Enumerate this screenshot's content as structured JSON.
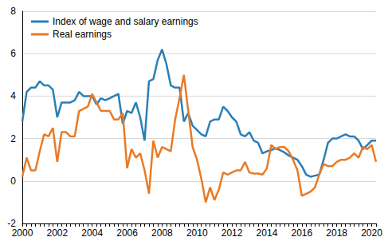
{
  "chart_data": {
    "type": "line",
    "categories": [
      "2000",
      null,
      null,
      null,
      null,
      null,
      null,
      null,
      "2002",
      null,
      null,
      null,
      null,
      null,
      null,
      null,
      "2004",
      null,
      null,
      null,
      null,
      null,
      null,
      null,
      "2006",
      null,
      null,
      null,
      null,
      null,
      null,
      null,
      "2008",
      null,
      null,
      null,
      null,
      null,
      null,
      null,
      "2010",
      null,
      null,
      null,
      null,
      null,
      null,
      null,
      "2012",
      null,
      null,
      null,
      null,
      null,
      null,
      null,
      "2014",
      null,
      null,
      null,
      null,
      null,
      null,
      null,
      "2016",
      null,
      null,
      null,
      null,
      null,
      null,
      null,
      "2018",
      null,
      null,
      null,
      null,
      null,
      null,
      null,
      "2020",
      null
    ],
    "series": [
      {
        "name": "Index of wage and salary earnings",
        "color": "#2a7fb8",
        "values": [
          2.8,
          4.2,
          4.4,
          4.4,
          4.7,
          4.5,
          4.5,
          4.3,
          3.0,
          3.7,
          3.7,
          3.7,
          3.8,
          4.2,
          4.0,
          4.0,
          4.0,
          3.6,
          3.9,
          3.8,
          3.9,
          4.0,
          4.1,
          2.7,
          3.3,
          3.2,
          3.7,
          3.0,
          1.9,
          4.7,
          4.8,
          5.7,
          6.2,
          5.5,
          4.5,
          4.4,
          4.4,
          2.8,
          3.2,
          2.6,
          2.4,
          2.2,
          2.1,
          2.8,
          2.9,
          2.9,
          3.5,
          3.3,
          3.0,
          2.8,
          2.2,
          2.1,
          2.3,
          1.9,
          1.8,
          1.3,
          1.4,
          1.45,
          1.55,
          1.45,
          1.35,
          1.2,
          1.1,
          1.0,
          0.7,
          0.3,
          0.2,
          0.25,
          0.3,
          1.0,
          1.8,
          2.0,
          2.0,
          2.1,
          2.2,
          2.1,
          2.1,
          1.9,
          1.5,
          1.7,
          1.9,
          1.9
        ]
      },
      {
        "name": "Real earnings",
        "color": "#ea7a24",
        "values": [
          0.2,
          1.1,
          0.5,
          0.5,
          1.4,
          2.2,
          2.1,
          2.5,
          0.9,
          2.3,
          2.3,
          2.1,
          2.1,
          3.3,
          3.4,
          3.5,
          4.1,
          3.7,
          3.3,
          3.3,
          3.3,
          2.9,
          2.9,
          3.2,
          0.6,
          1.5,
          1.1,
          1.3,
          0.5,
          -0.6,
          1.9,
          1.1,
          1.6,
          1.5,
          1.4,
          2.9,
          3.9,
          5.0,
          3.3,
          1.6,
          1.0,
          0.1,
          -1.0,
          -0.3,
          -0.9,
          -0.4,
          0.4,
          0.3,
          0.4,
          0.5,
          0.5,
          0.9,
          0.4,
          0.35,
          0.35,
          0.3,
          0.6,
          1.7,
          1.5,
          1.6,
          1.6,
          1.4,
          1.0,
          0.5,
          -0.7,
          -0.6,
          -0.5,
          -0.3,
          0.3,
          0.8,
          0.7,
          0.7,
          0.9,
          1.0,
          1.0,
          1.1,
          1.3,
          1.1,
          1.6,
          1.5,
          1.7,
          0.9
        ]
      }
    ],
    "ylim": [
      -2,
      8
    ],
    "yticks": [
      -2,
      0,
      2,
      4,
      6,
      8
    ],
    "grid": true,
    "legend": "top-left"
  }
}
